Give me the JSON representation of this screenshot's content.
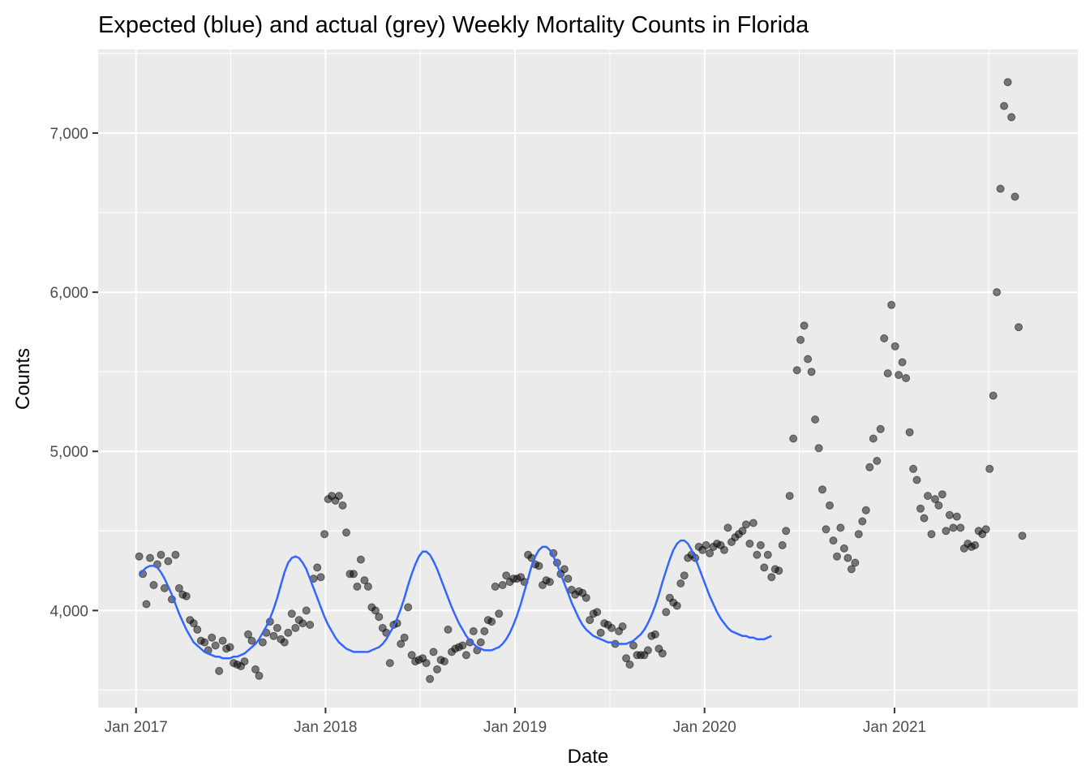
{
  "chart_data": {
    "type": "scatter",
    "title": "Expected (blue) and actual (grey) Weekly Mortality Counts in Florida",
    "xlabel": "Date",
    "ylabel": "Counts",
    "x_range": [
      "2016-10-20",
      "2021-12-20"
    ],
    "ylim": [
      3390,
      7525
    ],
    "grid": true,
    "legend": "none",
    "x_ticks": [
      {
        "date": "2017-01-01",
        "label": "Jan 2017"
      },
      {
        "date": "2018-01-01",
        "label": "Jan 2018"
      },
      {
        "date": "2019-01-01",
        "label": "Jan 2019"
      },
      {
        "date": "2020-01-01",
        "label": "Jan 2020"
      },
      {
        "date": "2021-01-01",
        "label": "Jan 2021"
      }
    ],
    "y_ticks": [
      {
        "value": 4000,
        "label": "4,000"
      },
      {
        "value": 5000,
        "label": "5,000"
      },
      {
        "value": 6000,
        "label": "6,000"
      },
      {
        "value": 7000,
        "label": "7,000"
      }
    ],
    "colors": {
      "points": "#000000",
      "expected_line": "#3366FF",
      "panel": "#EBEBEB",
      "grid": "#FFFFFF"
    },
    "series": [
      {
        "name": "actual",
        "kind": "points",
        "start_date": "2017-01-07",
        "step_days": 7,
        "values": [
          4340,
          4230,
          4040,
          4330,
          4160,
          4290,
          4350,
          4140,
          4310,
          4070,
          4350,
          4140,
          4100,
          4090,
          3940,
          3920,
          3880,
          3810,
          3800,
          3750,
          3830,
          3780,
          3620,
          3810,
          3760,
          3770,
          3670,
          3660,
          3650,
          3680,
          3850,
          3810,
          3630,
          3590,
          3800,
          3860,
          3930,
          3840,
          3890,
          3820,
          3800,
          3860,
          3980,
          3890,
          3940,
          3920,
          4000,
          3910,
          4200,
          4270,
          4210,
          4480,
          4700,
          4720,
          4690,
          4720,
          4660,
          4490,
          4230,
          4230,
          4150,
          4320,
          4190,
          4150,
          4020,
          4000,
          3960,
          3890,
          3860,
          3670,
          3910,
          3920,
          3790,
          3830,
          4020,
          3720,
          3680,
          3690,
          3700,
          3670,
          3570,
          3740,
          3630,
          3690,
          3680,
          3880,
          3740,
          3760,
          3770,
          3780,
          3720,
          3800,
          3870,
          3750,
          3800,
          3870,
          3940,
          3930,
          4150,
          3980,
          4160,
          4220,
          4180,
          4200,
          4200,
          4210,
          4180,
          4350,
          4330,
          4290,
          4280,
          4160,
          4190,
          4180,
          4360,
          4300,
          4230,
          4260,
          4200,
          4130,
          4100,
          4120,
          4110,
          4080,
          3940,
          3980,
          3990,
          3860,
          3920,
          3910,
          3890,
          3790,
          3870,
          3900,
          3700,
          3660,
          3780,
          3720,
          3720,
          3720,
          3750,
          3840,
          3850,
          3760,
          3730,
          3990,
          4080,
          4050,
          4030,
          4170,
          4220,
          4330,
          4350,
          4330,
          4400,
          4380,
          4410,
          4360,
          4400,
          4420,
          4410,
          4380,
          4520,
          4430,
          4460,
          4480,
          4500,
          4540,
          4420,
          4550,
          4350,
          4410,
          4270,
          4350,
          4210,
          4260,
          4250,
          4410,
          4500,
          4720,
          5080,
          5510,
          5700,
          5790,
          5580,
          5500,
          5200,
          5020,
          4760,
          4510,
          4660,
          4440,
          4340,
          4520,
          4390,
          4330,
          4260,
          4300,
          4480,
          4560,
          4630,
          4900,
          5080,
          4940,
          5140,
          5710,
          5490,
          5920,
          5660,
          5480,
          5560,
          5460,
          5120,
          4890,
          4820,
          4640,
          4580,
          4720,
          4480,
          4700,
          4660,
          4730,
          4500,
          4600,
          4520,
          4590,
          4520,
          4390,
          4420,
          4400,
          4410,
          4500,
          4480,
          4510,
          4890,
          5350,
          6000,
          6650,
          7170,
          7320,
          7100,
          6600,
          5780,
          4470
        ]
      },
      {
        "name": "expected",
        "kind": "line",
        "start_date": "2017-01-07",
        "step_days": 7,
        "values": [
          4220,
          4250,
          4270,
          4280,
          4280,
          4270,
          4240,
          4200,
          4150,
          4100,
          4040,
          3980,
          3930,
          3880,
          3840,
          3800,
          3780,
          3760,
          3740,
          3730,
          3720,
          3710,
          3710,
          3700,
          3700,
          3700,
          3710,
          3710,
          3720,
          3730,
          3750,
          3770,
          3790,
          3820,
          3860,
          3900,
          3950,
          4010,
          4080,
          4160,
          4240,
          4300,
          4330,
          4340,
          4330,
          4300,
          4260,
          4200,
          4140,
          4080,
          4020,
          3960,
          3910,
          3870,
          3830,
          3800,
          3780,
          3760,
          3750,
          3740,
          3740,
          3740,
          3740,
          3740,
          3750,
          3760,
          3770,
          3790,
          3820,
          3860,
          3900,
          3950,
          4010,
          4080,
          4160,
          4230,
          4290,
          4340,
          4370,
          4370,
          4350,
          4310,
          4260,
          4200,
          4140,
          4080,
          4020,
          3970,
          3920,
          3880,
          3840,
          3810,
          3790,
          3770,
          3760,
          3750,
          3750,
          3750,
          3760,
          3770,
          3790,
          3820,
          3860,
          3910,
          3970,
          4040,
          4120,
          4200,
          4280,
          4340,
          4380,
          4400,
          4400,
          4380,
          4340,
          4290,
          4230,
          4170,
          4110,
          4050,
          4000,
          3950,
          3910,
          3880,
          3860,
          3840,
          3830,
          3820,
          3810,
          3800,
          3800,
          3790,
          3790,
          3790,
          3790,
          3800,
          3810,
          3830,
          3850,
          3880,
          3920,
          3970,
          4030,
          4100,
          4180,
          4250,
          4320,
          4380,
          4420,
          4440,
          4440,
          4420,
          4380,
          4330,
          4270,
          4210,
          4150,
          4090,
          4040,
          3990,
          3950,
          3920,
          3890,
          3870,
          3860,
          3850,
          3840,
          3840,
          3830,
          3830,
          3820,
          3820,
          3820,
          3830,
          3840
        ]
      }
    ]
  }
}
